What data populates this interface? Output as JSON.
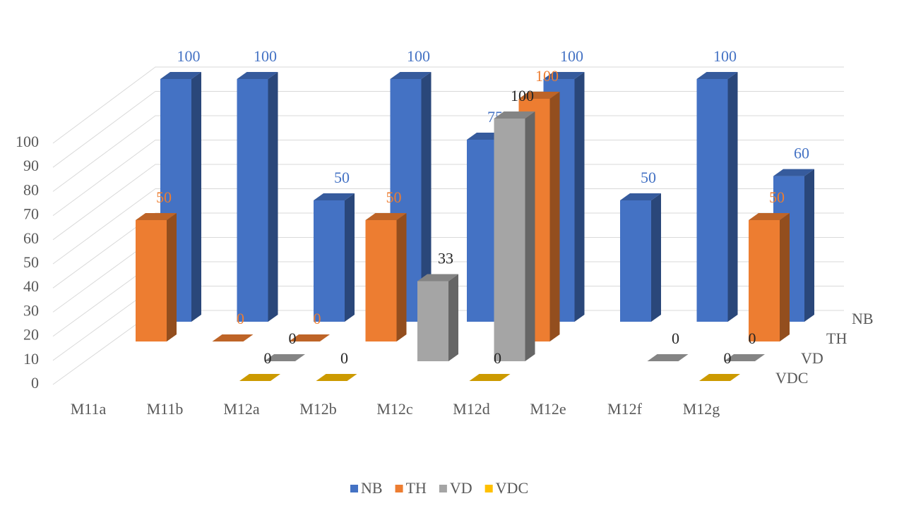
{
  "chart_data": {
    "type": "bar3d",
    "categories": [
      "M11a",
      "M11b",
      "M12a",
      "M12b",
      "M12c",
      "M12d",
      "M12e",
      "M12f",
      "M12g"
    ],
    "series": [
      {
        "name": "NB",
        "color": "#4472c4",
        "label_color": "#4472c4",
        "values": [
          100,
          100,
          50,
          100,
          75,
          100,
          50,
          100,
          60
        ]
      },
      {
        "name": "TH",
        "color": "#ed7d31",
        "label_color": "#ed7d31",
        "values": [
          50,
          0,
          0,
          50,
          null,
          100,
          null,
          null,
          50
        ]
      },
      {
        "name": "VD",
        "color": "#a5a5a5",
        "label_color": "#262626",
        "values": [
          null,
          null,
          0,
          null,
          33,
          100,
          null,
          0,
          0
        ]
      },
      {
        "name": "VDC",
        "color": "#ffc000",
        "label_color": "#262626",
        "values": [
          null,
          null,
          0,
          0,
          null,
          0,
          null,
          null,
          0
        ]
      }
    ],
    "ylim": [
      0,
      100
    ],
    "yticks": [
      0,
      10,
      20,
      30,
      40,
      50,
      60,
      70,
      80,
      90,
      100
    ],
    "grid": true,
    "legend": "bottom"
  }
}
